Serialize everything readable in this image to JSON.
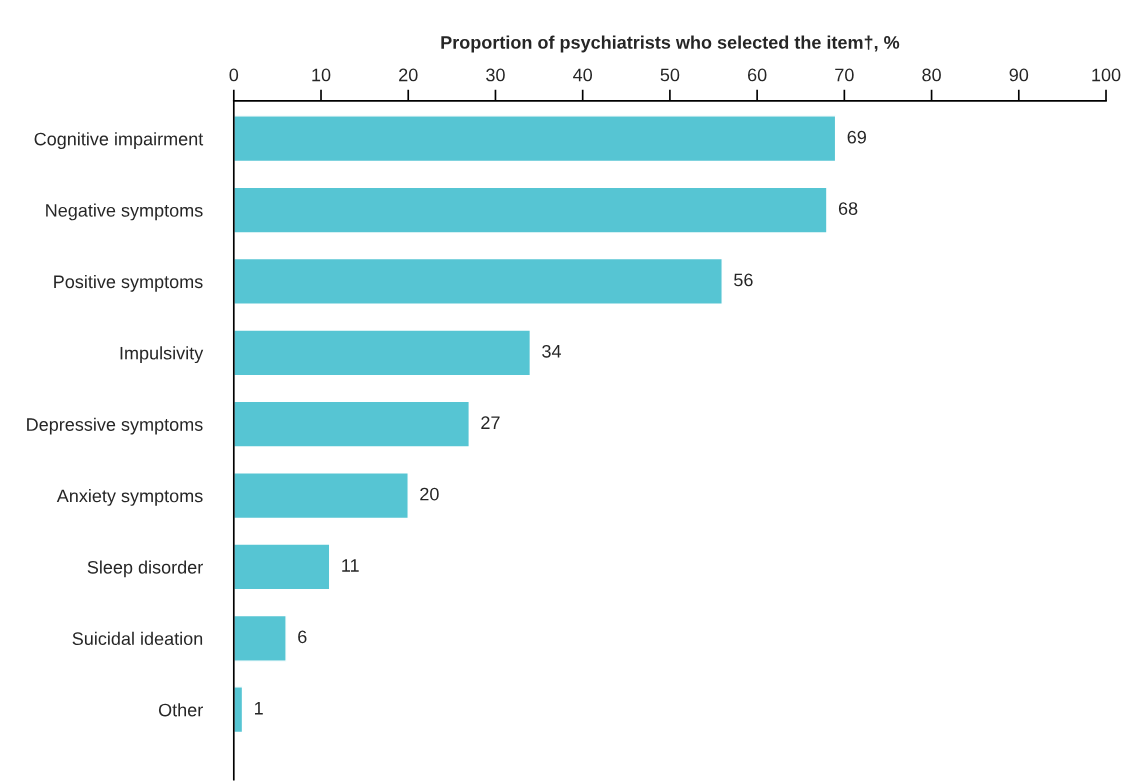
{
  "chart_data": {
    "type": "bar",
    "orientation": "horizontal",
    "xlabel": "Proportion of psychiatrists who selected the item†, %",
    "categories": [
      "Cognitive impairment",
      "Negative symptoms",
      "Positive symptoms",
      "Impulsivity",
      "Depressive symptoms",
      "Anxiety symptoms",
      "Sleep disorder",
      "Suicidal ideation",
      "Other"
    ],
    "values": [
      69,
      68,
      56,
      34,
      27,
      20,
      11,
      6,
      1
    ],
    "color": "#56c5d3",
    "xlim": [
      0,
      100
    ],
    "xticks": [
      0,
      10,
      20,
      30,
      40,
      50,
      60,
      70,
      80,
      90,
      100
    ],
    "data_labels": true,
    "grid": false,
    "legend": false
  }
}
